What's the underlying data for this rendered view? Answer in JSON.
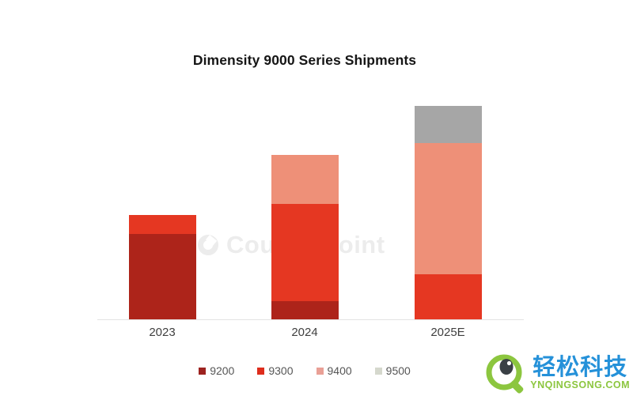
{
  "title": "Dimensity 9000 Series Shipments",
  "watermark": {
    "text": "Counterpoint"
  },
  "chart_data": {
    "type": "bar",
    "stacked": true,
    "title": "Dimensity 9000 Series Shipments",
    "xlabel": "",
    "ylabel": "",
    "categories": [
      "2023",
      "2024",
      "2025E"
    ],
    "series": [
      {
        "name": "9200",
        "color": "#ad241a",
        "legend_color": "#9d2320",
        "values": [
          108,
          23,
          0
        ]
      },
      {
        "name": "9300",
        "color": "#e53722",
        "legend_color": "#de2d1c",
        "values": [
          24,
          123,
          57
        ]
      },
      {
        "name": "9400",
        "color": "#ee9078",
        "legend_color": "#e9a096",
        "values": [
          0,
          62,
          166
        ]
      },
      {
        "name": "9500",
        "color": "#a6a6a6",
        "legend_color": "#d5d8cd",
        "values": [
          0,
          0,
          47
        ]
      }
    ],
    "value_unit": "relative height (no y-axis or value labels shown)",
    "ylim": [
      0,
      280
    ],
    "grid": false,
    "y_axis_visible": false,
    "legend_position": "bottom"
  },
  "branding": {
    "name_cn": "轻松科技",
    "domain": "YNQINGSONG.COM",
    "blue": "#2591d9",
    "green": "#8cc63f"
  }
}
